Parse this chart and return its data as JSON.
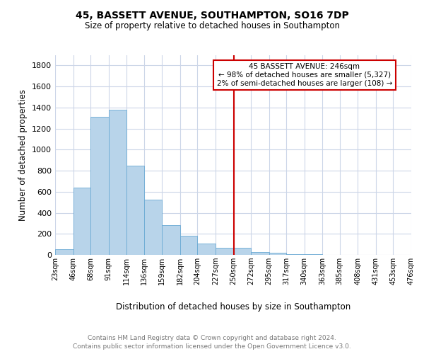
{
  "title": "45, BASSETT AVENUE, SOUTHAMPTON, SO16 7DP",
  "subtitle": "Size of property relative to detached houses in Southampton",
  "xlabel": "Distribution of detached houses by size in Southampton",
  "ylabel": "Number of detached properties",
  "annotation_title": "45 BASSETT AVENUE: 246sqm",
  "annotation_line1": "← 98% of detached houses are smaller (5,327)",
  "annotation_line2": "2% of semi-detached houses are larger (108) →",
  "footer_line1": "Contains HM Land Registry data © Crown copyright and database right 2024.",
  "footer_line2": "Contains public sector information licensed under the Open Government Licence v3.0.",
  "bar_color": "#b8d4ea",
  "bar_edge_color": "#6aaad4",
  "ref_line_color": "#cc0000",
  "ref_line_x": 250,
  "bin_edges": [
    23,
    46,
    68,
    91,
    114,
    136,
    159,
    182,
    204,
    227,
    250,
    272,
    295,
    317,
    340,
    363,
    385,
    408,
    431,
    453,
    476
  ],
  "bar_heights": [
    55,
    640,
    1310,
    1380,
    850,
    525,
    280,
    180,
    105,
    70,
    70,
    30,
    20,
    10,
    5,
    3,
    2,
    1,
    1,
    1
  ],
  "ylim": [
    0,
    1900
  ],
  "yticks": [
    0,
    200,
    400,
    600,
    800,
    1000,
    1200,
    1400,
    1600,
    1800
  ],
  "background_color": "#ffffff",
  "grid_color": "#ccd6e8"
}
